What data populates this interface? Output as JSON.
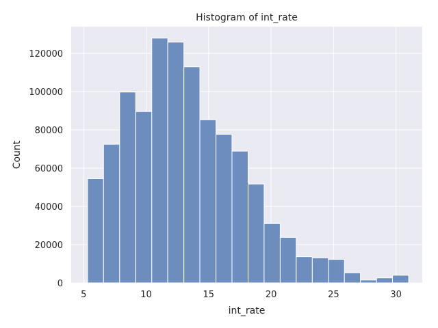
{
  "chart_data": {
    "type": "bar",
    "title": "Histogram of int_rate",
    "xlabel": "int_rate",
    "ylabel": "Count",
    "xlim": [
      4.0,
      32.1
    ],
    "ylim": [
      0,
      134000
    ],
    "xticks": [
      5,
      10,
      15,
      20,
      25,
      30
    ],
    "yticks": [
      0,
      20000,
      40000,
      60000,
      80000,
      100000,
      120000
    ],
    "grid": true,
    "bins": [
      {
        "x0": 5.31,
        "x1": 6.59,
        "count": 54500
      },
      {
        "x0": 6.59,
        "x1": 7.88,
        "count": 72500
      },
      {
        "x0": 7.88,
        "x1": 9.16,
        "count": 99800
      },
      {
        "x0": 9.16,
        "x1": 10.45,
        "count": 89600
      },
      {
        "x0": 10.45,
        "x1": 11.73,
        "count": 128000
      },
      {
        "x0": 11.73,
        "x1": 13.02,
        "count": 125900
      },
      {
        "x0": 13.02,
        "x1": 14.3,
        "count": 113000
      },
      {
        "x0": 14.3,
        "x1": 15.59,
        "count": 85300
      },
      {
        "x0": 15.59,
        "x1": 16.87,
        "count": 77700
      },
      {
        "x0": 16.87,
        "x1": 18.16,
        "count": 68900
      },
      {
        "x0": 18.16,
        "x1": 19.44,
        "count": 51700
      },
      {
        "x0": 19.44,
        "x1": 20.73,
        "count": 31000
      },
      {
        "x0": 20.73,
        "x1": 22.01,
        "count": 23800
      },
      {
        "x0": 22.01,
        "x1": 23.3,
        "count": 13700
      },
      {
        "x0": 23.3,
        "x1": 24.58,
        "count": 13100
      },
      {
        "x0": 24.58,
        "x1": 25.87,
        "count": 12300
      },
      {
        "x0": 25.87,
        "x1": 27.15,
        "count": 5300
      },
      {
        "x0": 27.15,
        "x1": 28.44,
        "count": 1500
      },
      {
        "x0": 28.44,
        "x1": 29.72,
        "count": 2600
      },
      {
        "x0": 29.72,
        "x1": 31.01,
        "count": 4000
      }
    ],
    "colors": {
      "background": "#eaeaf2",
      "bar": "#6d8dbf",
      "grid": "#ffffff",
      "text": "#262626"
    }
  }
}
